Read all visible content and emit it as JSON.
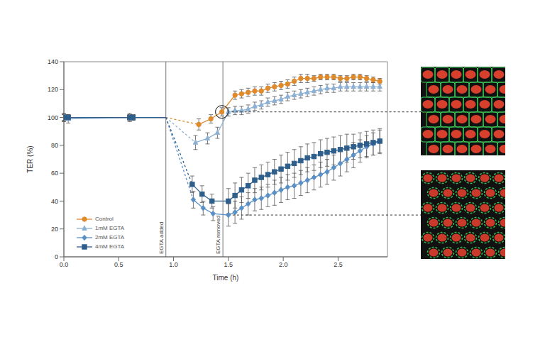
{
  "chart_data": {
    "type": "line",
    "x_label": "Time (h)",
    "y_label": "TER (%)",
    "xlim": [
      0,
      2.95
    ],
    "xticks": [
      {
        "value": 0,
        "label": "0.0"
      },
      0.5,
      {
        "value": 1,
        "label": "1.0"
      },
      1.5,
      {
        "value": 2,
        "label": "2.0"
      },
      2.5
    ],
    "ylim": [
      0,
      140
    ],
    "yticks": [
      0,
      20,
      40,
      60,
      80,
      100,
      120,
      140
    ],
    "grid": false,
    "legend": "lower left",
    "annotations": [
      {
        "x": 0.93,
        "label": "EGTA added"
      },
      {
        "x": 1.45,
        "label": "EGTA removed"
      }
    ],
    "series": [
      {
        "name": "Control",
        "color": "#e08a2e",
        "marker": "circle",
        "x": [
          0,
          0.04,
          0.6,
          0.63,
          0.93,
          1.23,
          1.34,
          1.44,
          1.56,
          1.62,
          1.68,
          1.74,
          1.8,
          1.86,
          1.92,
          1.98,
          2.04,
          2.1,
          2.16,
          2.22,
          2.28,
          2.34,
          2.4,
          2.46,
          2.52,
          2.58,
          2.64,
          2.7,
          2.76,
          2.82,
          2.88
        ],
        "values": [
          100,
          100,
          100,
          100,
          100,
          95,
          99,
          104,
          116,
          117,
          118,
          119,
          119,
          121,
          122,
          123,
          124,
          126,
          128,
          128,
          128,
          129,
          129,
          129,
          128,
          128,
          129,
          129,
          128,
          127,
          126
        ],
        "errors": [
          3,
          2,
          2,
          2,
          null,
          4,
          3,
          3,
          3,
          3,
          3,
          3,
          3,
          3,
          3,
          3,
          3,
          3,
          3,
          3,
          2,
          2,
          2,
          2,
          2,
          2,
          2,
          2,
          2,
          2,
          2
        ]
      },
      {
        "name": "1mM EGTA",
        "color": "#8eb1d3",
        "marker": "triangle",
        "x": [
          0,
          0.04,
          0.6,
          0.63,
          0.93,
          1.2,
          1.31,
          1.4,
          1.5,
          1.56,
          1.62,
          1.68,
          1.74,
          1.8,
          1.86,
          1.92,
          1.98,
          2.04,
          2.1,
          2.16,
          2.22,
          2.28,
          2.34,
          2.4,
          2.46,
          2.52,
          2.58,
          2.64,
          2.7,
          2.76,
          2.82,
          2.88
        ],
        "values": [
          100,
          99,
          100,
          100,
          100,
          82,
          85,
          89,
          104,
          105,
          105,
          106,
          108,
          109,
          111,
          112,
          113,
          115,
          116,
          117,
          118,
          119,
          120,
          121,
          121,
          122,
          122,
          122,
          122,
          122,
          122,
          122
        ],
        "errors": [
          3,
          3,
          3,
          2,
          null,
          5,
          4,
          4,
          3,
          3,
          3,
          3,
          3,
          3,
          3,
          3,
          3,
          3,
          3,
          3,
          3,
          3,
          3,
          3,
          3,
          3,
          3,
          3,
          3,
          3,
          3,
          3
        ]
      },
      {
        "name": "2mM EGTA",
        "color": "#5a8fc5",
        "marker": "diamond",
        "x": [
          0,
          0.04,
          0.6,
          0.63,
          0.93,
          1.18,
          1.27,
          1.36,
          1.5,
          1.56,
          1.62,
          1.68,
          1.74,
          1.8,
          1.86,
          1.92,
          1.98,
          2.04,
          2.1,
          2.16,
          2.22,
          2.28,
          2.34,
          2.4,
          2.46,
          2.52,
          2.58,
          2.64,
          2.7,
          2.76,
          2.82,
          2.88
        ],
        "values": [
          100,
          100,
          100,
          100,
          100,
          41,
          35,
          31,
          30,
          32,
          35,
          38,
          41,
          42,
          44,
          46,
          48,
          50,
          51,
          53,
          55,
          57,
          59,
          61,
          64,
          67,
          70,
          73,
          76,
          79,
          81,
          83
        ],
        "errors": [
          2,
          2,
          2,
          2,
          null,
          6,
          5,
          5,
          8,
          8,
          8,
          8,
          8,
          8,
          8,
          9,
          9,
          9,
          9,
          9,
          9,
          9,
          9,
          9,
          9,
          9,
          9,
          9,
          8,
          8,
          8,
          8
        ]
      },
      {
        "name": "4mM EGTA",
        "color": "#2e5f8c",
        "marker": "square",
        "x": [
          0,
          0.04,
          0.6,
          0.63,
          0.93,
          1.17,
          1.26,
          1.35,
          1.5,
          1.56,
          1.62,
          1.68,
          1.74,
          1.8,
          1.86,
          1.92,
          1.98,
          2.04,
          2.1,
          2.16,
          2.22,
          2.28,
          2.34,
          2.4,
          2.46,
          2.52,
          2.58,
          2.64,
          2.7,
          2.76,
          2.82,
          2.88
        ],
        "values": [
          100,
          100,
          100,
          100,
          100,
          52,
          45,
          40,
          40,
          44,
          48,
          51,
          55,
          57,
          59,
          61,
          63,
          65,
          67,
          69,
          71,
          72,
          74,
          75,
          76,
          77,
          78,
          79,
          80,
          81,
          82,
          83
        ],
        "errors": [
          2,
          2,
          2,
          2,
          null,
          6,
          6,
          5,
          9,
          9,
          9,
          9,
          9,
          9,
          9,
          9,
          10,
          10,
          10,
          10,
          10,
          10,
          10,
          10,
          10,
          10,
          10,
          9,
          9,
          9,
          9,
          9
        ]
      }
    ]
  }
}
